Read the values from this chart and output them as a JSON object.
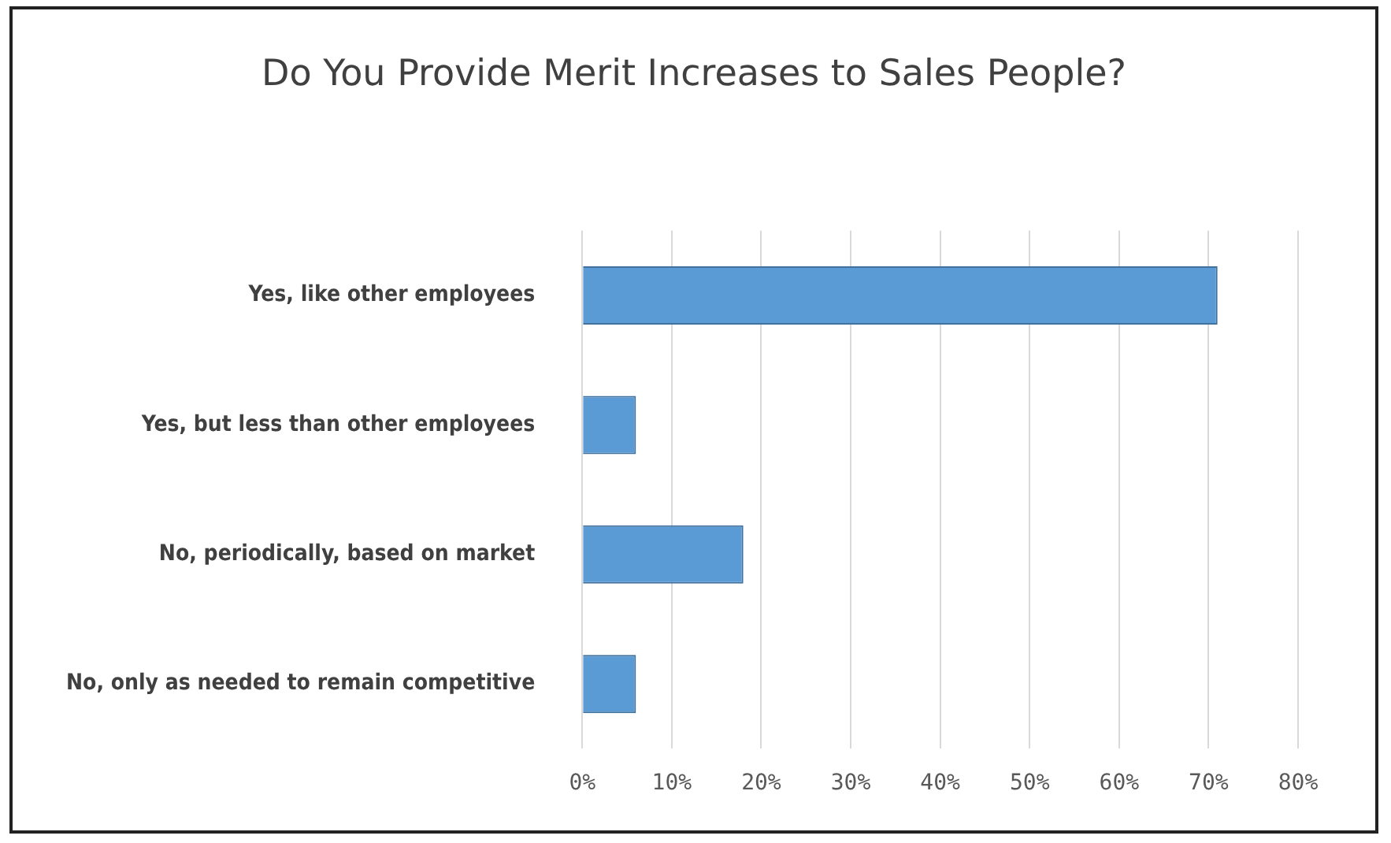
{
  "chart_data": {
    "type": "bar",
    "orientation": "horizontal",
    "title": "Do You Provide Merit Increases to Sales People?",
    "categories": [
      "Yes, like other employees",
      "Yes, but less than other employees",
      "No, periodically, based on market",
      "No, only as needed to remain competitive"
    ],
    "values": [
      71,
      6,
      18,
      6
    ],
    "color": "#5b9bd5",
    "xlim": [
      0,
      80
    ],
    "xticks": [
      {
        "value": 0,
        "label": "0%"
      },
      {
        "value": 10,
        "label": "10%"
      },
      {
        "value": 20,
        "label": "20%"
      },
      {
        "value": 30,
        "label": "30%"
      },
      {
        "value": 40,
        "label": "40%"
      },
      {
        "value": 50,
        "label": "50%"
      },
      {
        "value": 60,
        "label": "60%"
      },
      {
        "value": 70,
        "label": "70%"
      },
      {
        "value": 80,
        "label": "80%"
      }
    ],
    "grid": "x"
  }
}
